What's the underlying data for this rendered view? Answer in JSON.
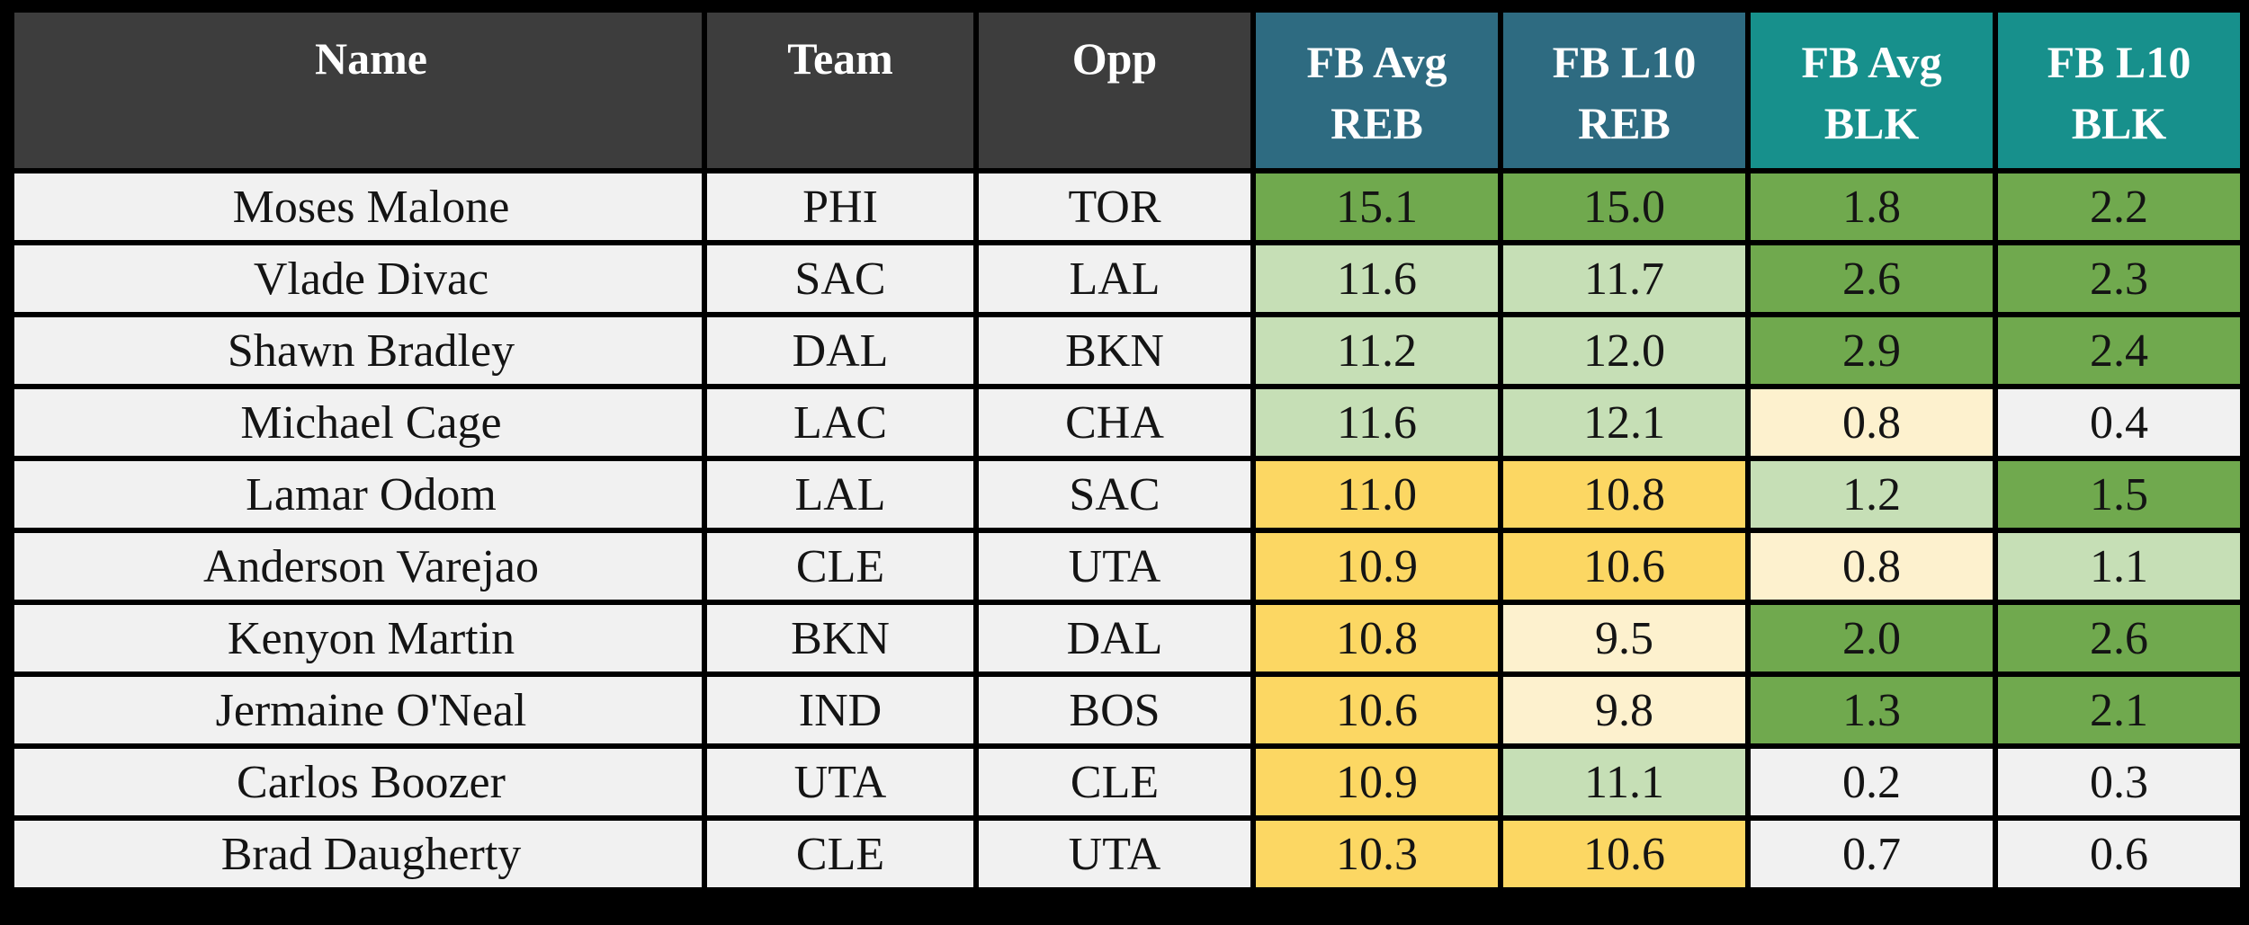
{
  "colors": {
    "page_bg": "#000000",
    "border": "#000000",
    "header_text": "#ffffff",
    "body_text": "#141414",
    "header_info_bg": "#3d3d3d",
    "header_reb_bg": "#2e6b81",
    "header_blk_bg": "#17908c",
    "row_bg": "#f1f1f1",
    "cell_green": "#70a94e",
    "cell_light_green": "#c6dfb6",
    "cell_yellow": "#fcd763",
    "cell_cream": "#fdf1ce",
    "cell_neutral": "#f1f1f1"
  },
  "chart_data": {
    "type": "table",
    "columns": [
      {
        "id": "name",
        "label": "Name",
        "group": "info"
      },
      {
        "id": "team",
        "label": "Team",
        "group": "info"
      },
      {
        "id": "opp",
        "label": "Opp",
        "group": "info"
      },
      {
        "id": "fb_avg_reb",
        "label": "FB Avg REB",
        "line1": "FB Avg",
        "line2": "REB",
        "group": "reb"
      },
      {
        "id": "fb_l10_reb",
        "label": "FB L10 REB",
        "line1": "FB L10",
        "line2": "REB",
        "group": "reb"
      },
      {
        "id": "fb_avg_blk",
        "label": "FB Avg BLK",
        "line1": "FB Avg",
        "line2": "BLK",
        "group": "blk"
      },
      {
        "id": "fb_l10_blk",
        "label": "FB L10 BLK",
        "line1": "FB L10",
        "line2": "BLK",
        "group": "blk"
      }
    ],
    "rows": [
      {
        "name": "Moses Malone",
        "team": "PHI",
        "opp": "TOR",
        "fb_avg_reb": {
          "value": "15.1",
          "tone": "green"
        },
        "fb_l10_reb": {
          "value": "15.0",
          "tone": "green"
        },
        "fb_avg_blk": {
          "value": "1.8",
          "tone": "green"
        },
        "fb_l10_blk": {
          "value": "2.2",
          "tone": "green"
        }
      },
      {
        "name": "Vlade Divac",
        "team": "SAC",
        "opp": "LAL",
        "fb_avg_reb": {
          "value": "11.6",
          "tone": "light_green"
        },
        "fb_l10_reb": {
          "value": "11.7",
          "tone": "light_green"
        },
        "fb_avg_blk": {
          "value": "2.6",
          "tone": "green"
        },
        "fb_l10_blk": {
          "value": "2.3",
          "tone": "green"
        }
      },
      {
        "name": "Shawn Bradley",
        "team": "DAL",
        "opp": "BKN",
        "fb_avg_reb": {
          "value": "11.2",
          "tone": "light_green"
        },
        "fb_l10_reb": {
          "value": "12.0",
          "tone": "light_green"
        },
        "fb_avg_blk": {
          "value": "2.9",
          "tone": "green"
        },
        "fb_l10_blk": {
          "value": "2.4",
          "tone": "green"
        }
      },
      {
        "name": "Michael Cage",
        "team": "LAC",
        "opp": "CHA",
        "fb_avg_reb": {
          "value": "11.6",
          "tone": "light_green"
        },
        "fb_l10_reb": {
          "value": "12.1",
          "tone": "light_green"
        },
        "fb_avg_blk": {
          "value": "0.8",
          "tone": "cream"
        },
        "fb_l10_blk": {
          "value": "0.4",
          "tone": "neutral"
        }
      },
      {
        "name": "Lamar Odom",
        "team": "LAL",
        "opp": "SAC",
        "fb_avg_reb": {
          "value": "11.0",
          "tone": "yellow"
        },
        "fb_l10_reb": {
          "value": "10.8",
          "tone": "yellow"
        },
        "fb_avg_blk": {
          "value": "1.2",
          "tone": "light_green"
        },
        "fb_l10_blk": {
          "value": "1.5",
          "tone": "green"
        }
      },
      {
        "name": "Anderson Varejao",
        "team": "CLE",
        "opp": "UTA",
        "fb_avg_reb": {
          "value": "10.9",
          "tone": "yellow"
        },
        "fb_l10_reb": {
          "value": "10.6",
          "tone": "yellow"
        },
        "fb_avg_blk": {
          "value": "0.8",
          "tone": "cream"
        },
        "fb_l10_blk": {
          "value": "1.1",
          "tone": "light_green"
        }
      },
      {
        "name": "Kenyon Martin",
        "team": "BKN",
        "opp": "DAL",
        "fb_avg_reb": {
          "value": "10.8",
          "tone": "yellow"
        },
        "fb_l10_reb": {
          "value": "9.5",
          "tone": "cream"
        },
        "fb_avg_blk": {
          "value": "2.0",
          "tone": "green"
        },
        "fb_l10_blk": {
          "value": "2.6",
          "tone": "green"
        }
      },
      {
        "name": "Jermaine O'Neal",
        "team": "IND",
        "opp": "BOS",
        "fb_avg_reb": {
          "value": "10.6",
          "tone": "yellow"
        },
        "fb_l10_reb": {
          "value": "9.8",
          "tone": "cream"
        },
        "fb_avg_blk": {
          "value": "1.3",
          "tone": "green"
        },
        "fb_l10_blk": {
          "value": "2.1",
          "tone": "green"
        }
      },
      {
        "name": "Carlos Boozer",
        "team": "UTA",
        "opp": "CLE",
        "fb_avg_reb": {
          "value": "10.9",
          "tone": "yellow"
        },
        "fb_l10_reb": {
          "value": "11.1",
          "tone": "light_green"
        },
        "fb_avg_blk": {
          "value": "0.2",
          "tone": "neutral"
        },
        "fb_l10_blk": {
          "value": "0.3",
          "tone": "neutral"
        }
      },
      {
        "name": "Brad Daugherty",
        "team": "CLE",
        "opp": "UTA",
        "fb_avg_reb": {
          "value": "10.3",
          "tone": "yellow"
        },
        "fb_l10_reb": {
          "value": "10.6",
          "tone": "yellow"
        },
        "fb_avg_blk": {
          "value": "0.7",
          "tone": "neutral"
        },
        "fb_l10_blk": {
          "value": "0.6",
          "tone": "neutral"
        }
      }
    ]
  }
}
